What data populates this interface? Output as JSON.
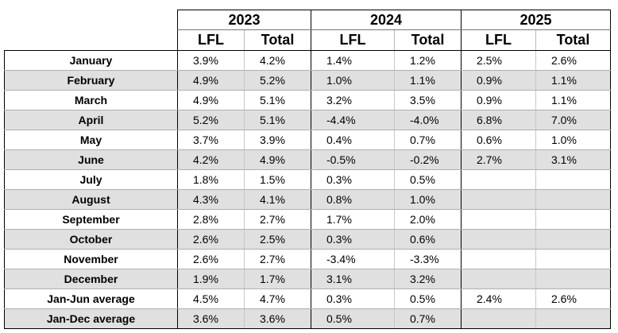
{
  "years": [
    "2023",
    "2024",
    "2025"
  ],
  "subheaders": [
    "LFL",
    "Total"
  ],
  "rows": [
    {
      "label": "January",
      "values": [
        "3.9%",
        "4.2%",
        "1.4%",
        "1.2%",
        "2.5%",
        "2.6%"
      ]
    },
    {
      "label": "February",
      "values": [
        "4.9%",
        "5.2%",
        "1.0%",
        "1.1%",
        "0.9%",
        "1.1%"
      ]
    },
    {
      "label": "March",
      "values": [
        "4.9%",
        "5.1%",
        "3.2%",
        "3.5%",
        "0.9%",
        "1.1%"
      ]
    },
    {
      "label": "April",
      "values": [
        "5.2%",
        "5.1%",
        "-4.4%",
        "-4.0%",
        "6.8%",
        "7.0%"
      ]
    },
    {
      "label": "May",
      "values": [
        "3.7%",
        "3.9%",
        "0.4%",
        "0.7%",
        "0.6%",
        "1.0%"
      ]
    },
    {
      "label": "June",
      "values": [
        "4.2%",
        "4.9%",
        "-0.5%",
        "-0.2%",
        "2.7%",
        "3.1%"
      ]
    },
    {
      "label": "July",
      "values": [
        "1.8%",
        "1.5%",
        "0.3%",
        "0.5%",
        "",
        ""
      ]
    },
    {
      "label": "August",
      "values": [
        "4.3%",
        "4.1%",
        "0.8%",
        "1.0%",
        "",
        ""
      ]
    },
    {
      "label": "September",
      "values": [
        "2.8%",
        "2.7%",
        "1.7%",
        "2.0%",
        "",
        ""
      ]
    },
    {
      "label": "October",
      "values": [
        "2.6%",
        "2.5%",
        "0.3%",
        "0.6%",
        "",
        ""
      ]
    },
    {
      "label": "November",
      "values": [
        "2.6%",
        "2.7%",
        "-3.4%",
        "-3.3%",
        "",
        ""
      ]
    },
    {
      "label": "December",
      "values": [
        "1.9%",
        "1.7%",
        "3.1%",
        "3.2%",
        "",
        ""
      ]
    },
    {
      "label": "Jan-Jun average",
      "values": [
        "4.5%",
        "4.7%",
        "0.3%",
        "0.5%",
        "2.4%",
        "2.6%"
      ]
    },
    {
      "label": "Jan-Dec average",
      "values": [
        "3.6%",
        "3.6%",
        "0.5%",
        "0.7%",
        "",
        ""
      ]
    }
  ]
}
